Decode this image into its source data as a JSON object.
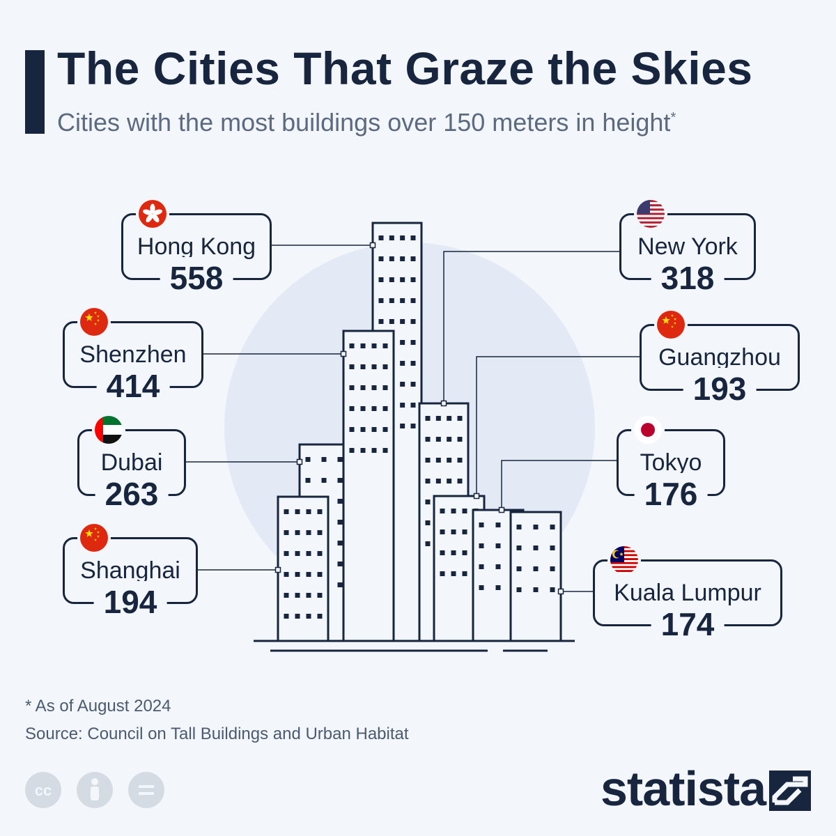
{
  "header": {
    "title": "The Cities That Graze the Skies",
    "subtitle": "Cities with the most buildings over 150 meters in height",
    "subtitle_marker": "*"
  },
  "chart_data": {
    "type": "bar",
    "title": "The Cities That Graze the Skies",
    "subtitle": "Cities with the most buildings over 150 meters in height*",
    "categories": [
      "Hong Kong",
      "Shenzhen",
      "Dubai",
      "Shanghai",
      "New York",
      "Guangzhou",
      "Tokyo",
      "Kuala Lumpur"
    ],
    "values": [
      558,
      414,
      263,
      194,
      318,
      193,
      176,
      174
    ],
    "flags": [
      "hong-kong-flag-icon",
      "china-flag-icon",
      "uae-flag-icon",
      "china-flag-icon",
      "usa-flag-icon",
      "china-flag-icon",
      "japan-flag-icon",
      "malaysia-flag-icon"
    ]
  },
  "colors": {
    "background": "#f3f7fb",
    "ink": "#17253f",
    "circle": "#e3eaf5",
    "muted": "#5b6a80",
    "flag_red": "#de2910"
  },
  "footer": {
    "note": "* As of August 2024",
    "source": "Source: Council on Tall Buildings and Urban Habitat",
    "brand": "statista",
    "license_icons": [
      "cc-icon",
      "attribution-icon",
      "no-derivatives-icon"
    ]
  }
}
